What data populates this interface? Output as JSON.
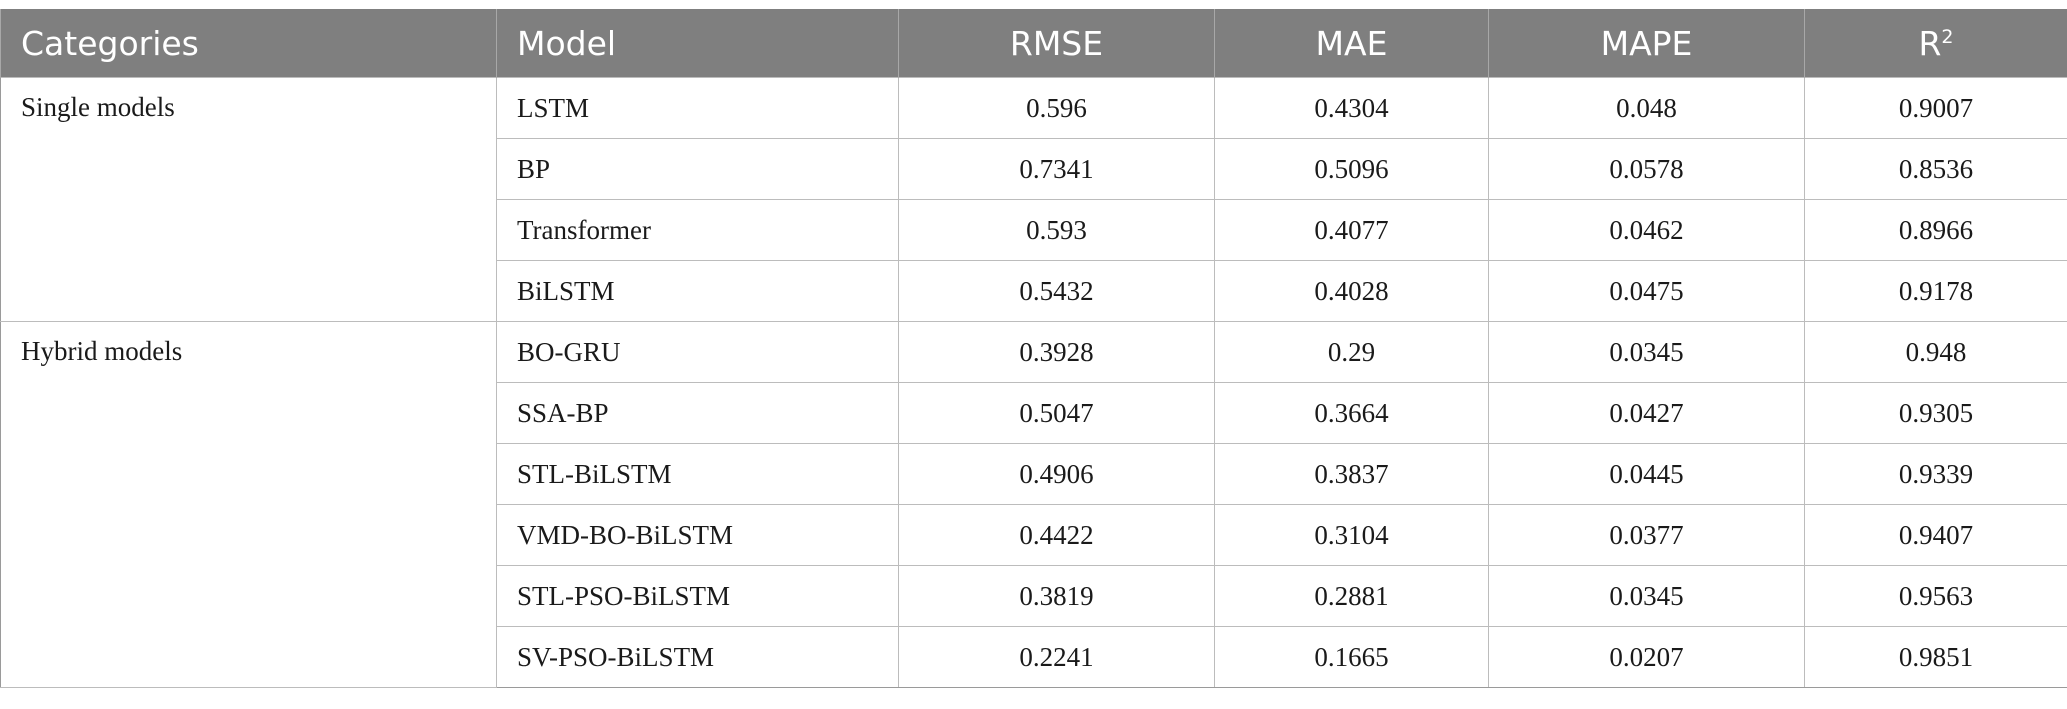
{
  "table": {
    "headers": {
      "category": "Categories",
      "model": "Model",
      "rmse": "RMSE",
      "mae": "MAE",
      "mape": "MAPE",
      "r2_base": "R",
      "r2_sup": "2"
    },
    "groups": [
      {
        "category": "Single models",
        "rows": [
          {
            "model": "LSTM",
            "rmse": "0.596",
            "mae": "0.4304",
            "mape": "0.048",
            "r2": "0.9007"
          },
          {
            "model": "BP",
            "rmse": "0.7341",
            "mae": "0.5096",
            "mape": "0.0578",
            "r2": "0.8536"
          },
          {
            "model": "Transformer",
            "rmse": "0.593",
            "mae": "0.4077",
            "mape": "0.0462",
            "r2": "0.8966"
          },
          {
            "model": "BiLSTM",
            "rmse": "0.5432",
            "mae": "0.4028",
            "mape": "0.0475",
            "r2": "0.9178"
          }
        ]
      },
      {
        "category": "Hybrid models",
        "rows": [
          {
            "model": "BO-GRU",
            "rmse": "0.3928",
            "mae": "0.29",
            "mape": "0.0345",
            "r2": "0.948"
          },
          {
            "model": "SSA-BP",
            "rmse": "0.5047",
            "mae": "0.3664",
            "mape": "0.0427",
            "r2": "0.9305"
          },
          {
            "model": "STL-BiLSTM",
            "rmse": "0.4906",
            "mae": "0.3837",
            "mape": "0.0445",
            "r2": "0.9339"
          },
          {
            "model": "VMD-BO-BiLSTM",
            "rmse": "0.4422",
            "mae": "0.3104",
            "mape": "0.0377",
            "r2": "0.9407"
          },
          {
            "model": "STL-PSO-BiLSTM",
            "rmse": "0.3819",
            "mae": "0.2881",
            "mape": "0.0345",
            "r2": "0.9563"
          },
          {
            "model": "SV-PSO-BiLSTM",
            "rmse": "0.2241",
            "mae": "0.1665",
            "mape": "0.0207",
            "r2": "0.9851"
          }
        ]
      }
    ],
    "colors": {
      "header_bg": "#7f7f7f",
      "header_text": "#ffffff",
      "grid": "#bcbcbc"
    }
  }
}
